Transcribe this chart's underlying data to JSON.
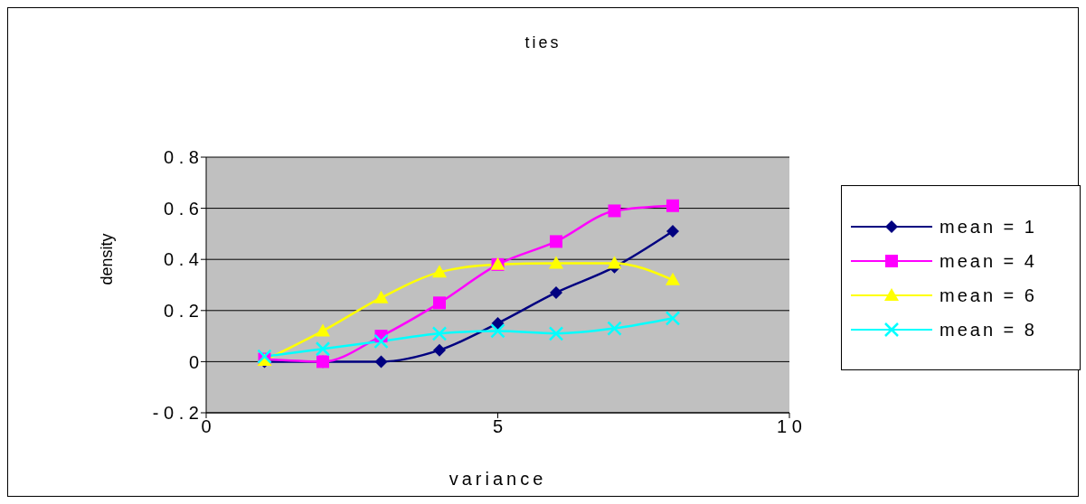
{
  "chart_data": {
    "type": "line",
    "title": "ties",
    "xlabel": "variance",
    "ylabel": "density",
    "x": [
      1,
      2,
      3,
      4,
      5,
      6,
      7,
      8
    ],
    "series": [
      {
        "name": "mean = 1",
        "color": "#000080",
        "marker": "diamond",
        "values": [
          0,
          0,
          0,
          0.045,
          0.15,
          0.27,
          0.37,
          0.51
        ]
      },
      {
        "name": "mean = 4",
        "color": "#ff00ff",
        "marker": "square",
        "values": [
          0.01,
          0,
          0.1,
          0.23,
          0.38,
          0.47,
          0.59,
          0.61
        ]
      },
      {
        "name": "mean = 6",
        "color": "#ffff00",
        "marker": "triangle",
        "values": [
          0.005,
          0.12,
          0.25,
          0.35,
          0.38,
          0.385,
          0.385,
          0.32
        ]
      },
      {
        "name": "mean = 8",
        "color": "#00ffff",
        "marker": "cross",
        "values": [
          0.02,
          0.05,
          0.08,
          0.11,
          0.12,
          0.11,
          0.13,
          0.17
        ]
      }
    ],
    "xlim": [
      0,
      10
    ],
    "xticks": [
      0,
      5,
      10
    ],
    "ylim": [
      -0.2,
      0.8
    ],
    "yticks": [
      -0.2,
      0,
      0.2,
      0.4,
      0.6,
      0.8
    ],
    "grid": "y",
    "legend": "right"
  }
}
